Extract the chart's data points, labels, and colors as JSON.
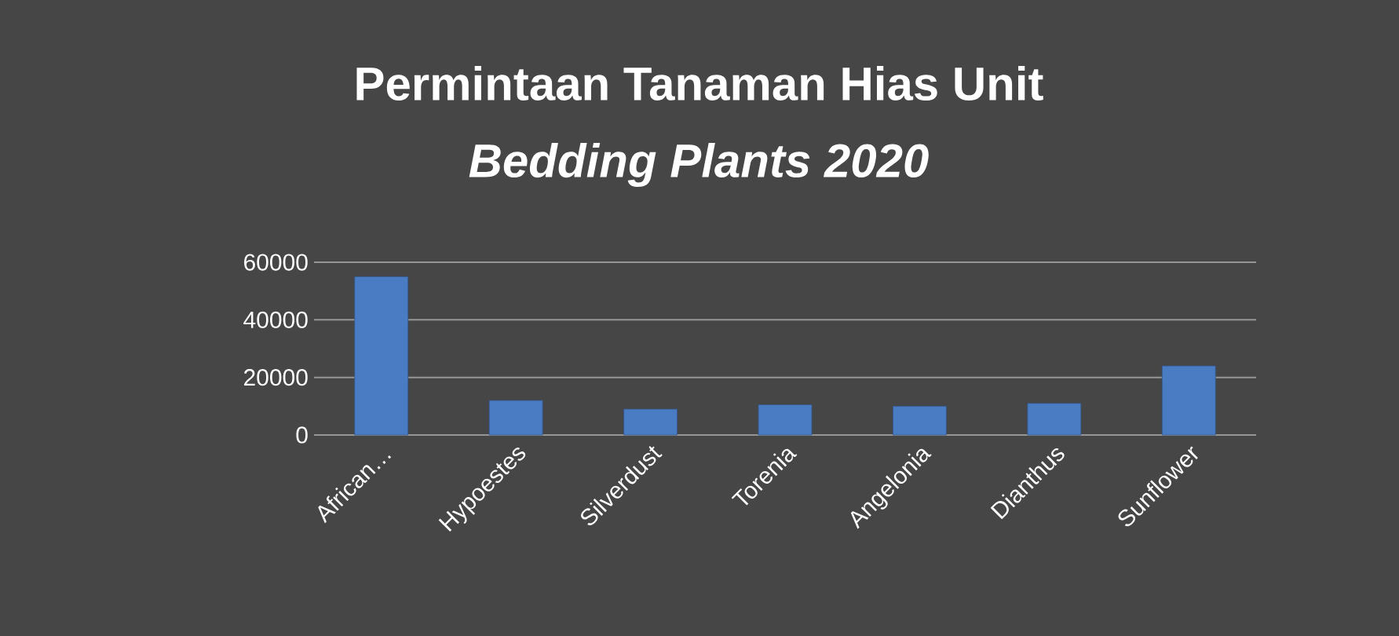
{
  "chart_data": {
    "type": "bar",
    "title": "Permintaan Tanaman Hias Unit",
    "subtitle": "Bedding Plants 2020",
    "categories": [
      "African…",
      "Hypoestes",
      "Silverdust",
      "Torenia",
      "Angelonia",
      "Dianthus",
      "Sunflower"
    ],
    "values": [
      55000,
      12000,
      9000,
      10500,
      10000,
      11000,
      24000
    ],
    "color": "#4a7cc4",
    "ylim": [
      0,
      60000
    ],
    "yticks": [
      0,
      20000,
      40000,
      60000
    ],
    "grid": "y"
  }
}
